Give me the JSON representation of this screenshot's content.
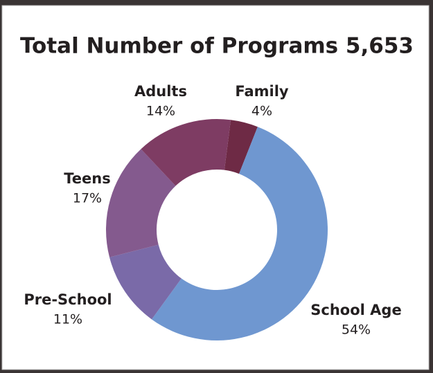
{
  "chart_data": {
    "type": "donut",
    "title": "Total Number of Programs 5,653",
    "categories": [
      "Family",
      "School Age",
      "Pre-School",
      "Teens",
      "Adults"
    ],
    "values": [
      4,
      54,
      11,
      17,
      14
    ],
    "value_labels": [
      "4%",
      "54%",
      "11%",
      "17%",
      "14%"
    ],
    "colors": [
      "#6e2a45",
      "#6f97d0",
      "#7a6aa8",
      "#845a8e",
      "#7e3c63"
    ]
  }
}
